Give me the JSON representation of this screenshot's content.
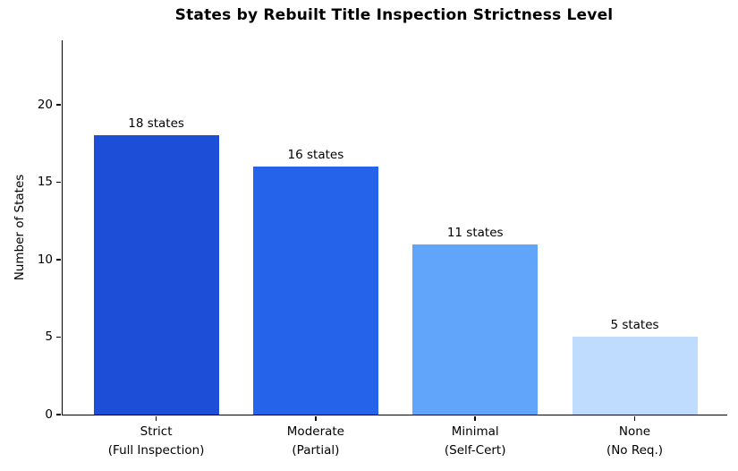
{
  "chart_data": {
    "type": "bar",
    "title": "States by Rebuilt Title Inspection Strictness Level",
    "ylabel": "Number of States",
    "xlabel": "",
    "categories": [
      "Strict\n(Full Inspection)",
      "Moderate\n(Partial)",
      "Minimal\n(Self-Cert)",
      "None\n(No Req.)"
    ],
    "values": [
      18,
      16,
      11,
      5
    ],
    "bar_labels": [
      "18 states",
      "16 states",
      "11 states",
      "5 states"
    ],
    "bar_colors": [
      "#1d4ed8",
      "#2563eb",
      "#60a5fa",
      "#bfdbfe"
    ],
    "yticks": [
      0,
      5,
      10,
      15,
      20
    ],
    "ylim": [
      0,
      24.15
    ],
    "grid": false,
    "legend_position": "none",
    "text_color": "#000000",
    "background_color": "#ffffff"
  }
}
